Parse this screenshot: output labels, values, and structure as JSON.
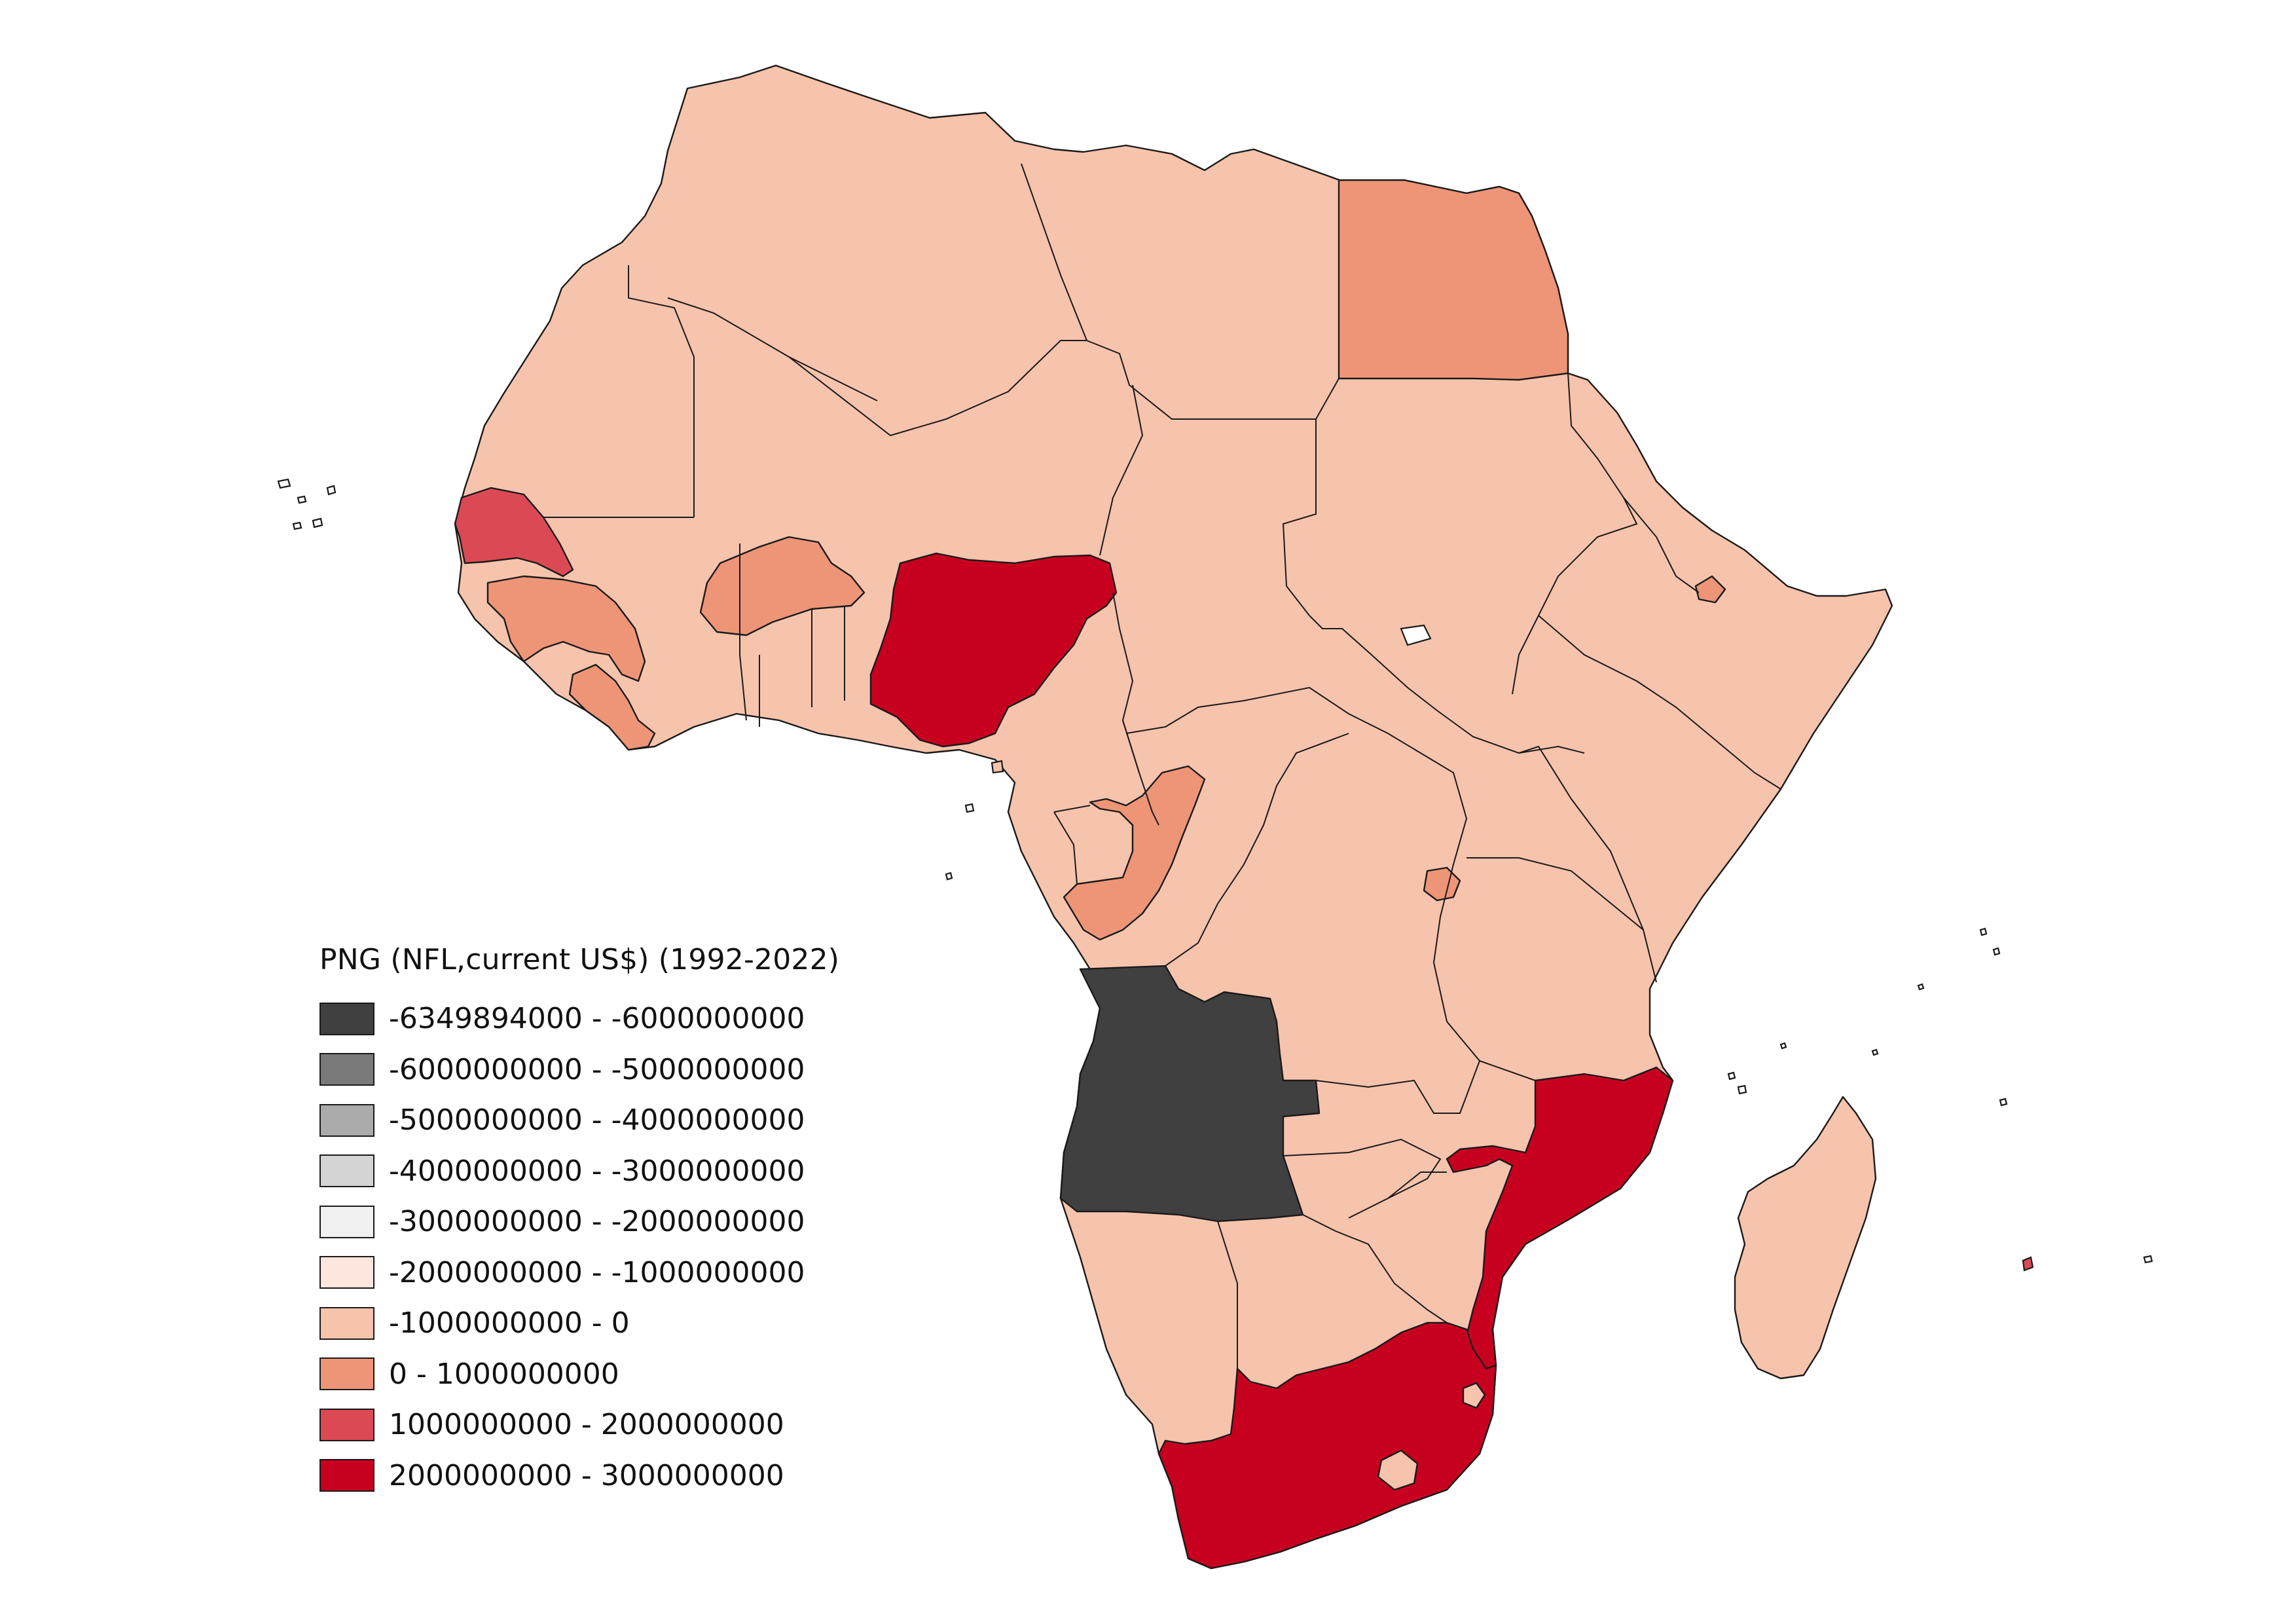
{
  "legend": {
    "title": "PNG (NFL,current US$) (1992-2022)",
    "classes": [
      {
        "label": "-6349894000 - -6000000000",
        "color": "#404040"
      },
      {
        "label": "-6000000000 - -5000000000",
        "color": "#7a7a7a"
      },
      {
        "label": "-5000000000 - -4000000000",
        "color": "#ababab"
      },
      {
        "label": "-4000000000 - -3000000000",
        "color": "#d4d4d4"
      },
      {
        "label": "-3000000000 - -2000000000",
        "color": "#f0f0f0"
      },
      {
        "label": "-2000000000 - -1000000000",
        "color": "#fde6dd"
      },
      {
        "label": "-1000000000 - 0",
        "color": "#f6c3ac"
      },
      {
        "label": "0 - 1000000000",
        "color": "#ee9577"
      },
      {
        "label": "1000000000 - 2000000000",
        "color": "#db4a54"
      },
      {
        "label": "2000000000 - 3000000000",
        "color": "#c8001f"
      }
    ]
  },
  "map": {
    "region": "Africa",
    "default_class": 6,
    "highlighted_regions": [
      {
        "name": "Angola",
        "class": 0
      },
      {
        "name": "Nigeria",
        "class": 9
      },
      {
        "name": "South Africa",
        "class": 9
      },
      {
        "name": "Mozambique",
        "class": 9
      },
      {
        "name": "Senegal",
        "class": 8
      },
      {
        "name": "Egypt",
        "class": 7
      },
      {
        "name": "Burkina Faso",
        "class": 7
      },
      {
        "name": "Guinea",
        "class": 7
      },
      {
        "name": "Liberia",
        "class": 7
      },
      {
        "name": "Republic of the Congo",
        "class": 7
      },
      {
        "name": "Rwanda",
        "class": 7
      },
      {
        "name": "Djibouti",
        "class": 7
      },
      {
        "name": "Mauritius",
        "class": 8
      }
    ]
  }
}
